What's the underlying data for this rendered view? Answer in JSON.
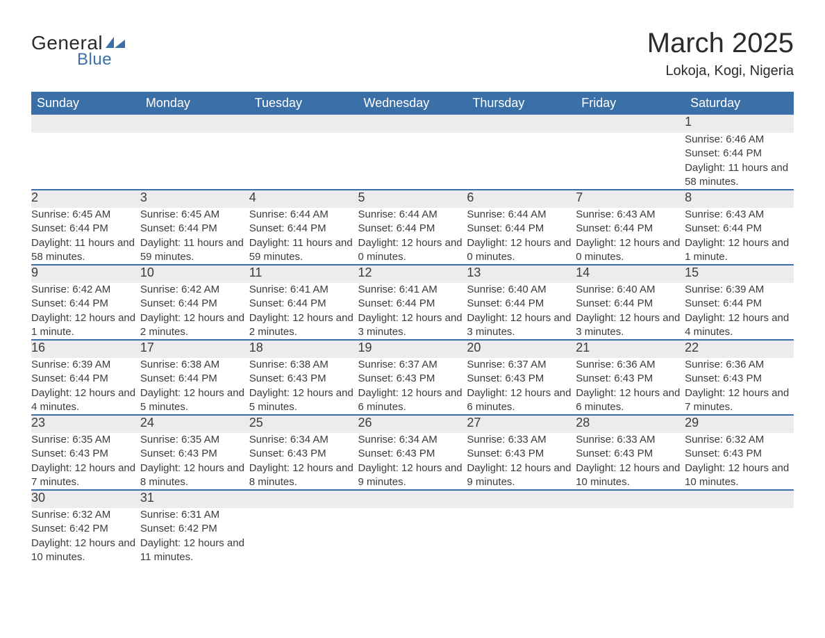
{
  "brand": {
    "word1": "General",
    "word2": "Blue",
    "accent_color": "#3a6fa8"
  },
  "title": "March 2025",
  "subtitle": "Lokoja, Kogi, Nigeria",
  "colors": {
    "header_bg": "#3a6fa8",
    "header_text": "#ffffff",
    "daynum_bg": "#ececec",
    "row_border": "#3a6fa8",
    "body_text": "#3b3b3b",
    "background": "#ffffff"
  },
  "typography": {
    "title_fontsize": 40,
    "subtitle_fontsize": 20,
    "header_fontsize": 18,
    "daynum_fontsize": 18,
    "detail_fontsize": 15
  },
  "calendar": {
    "type": "table",
    "columns": [
      "Sunday",
      "Monday",
      "Tuesday",
      "Wednesday",
      "Thursday",
      "Friday",
      "Saturday"
    ],
    "weeks": [
      [
        null,
        null,
        null,
        null,
        null,
        null,
        {
          "day": 1,
          "sunrise": "6:46 AM",
          "sunset": "6:44 PM",
          "daylight": "11 hours and 58 minutes."
        }
      ],
      [
        {
          "day": 2,
          "sunrise": "6:45 AM",
          "sunset": "6:44 PM",
          "daylight": "11 hours and 58 minutes."
        },
        {
          "day": 3,
          "sunrise": "6:45 AM",
          "sunset": "6:44 PM",
          "daylight": "11 hours and 59 minutes."
        },
        {
          "day": 4,
          "sunrise": "6:44 AM",
          "sunset": "6:44 PM",
          "daylight": "11 hours and 59 minutes."
        },
        {
          "day": 5,
          "sunrise": "6:44 AM",
          "sunset": "6:44 PM",
          "daylight": "12 hours and 0 minutes."
        },
        {
          "day": 6,
          "sunrise": "6:44 AM",
          "sunset": "6:44 PM",
          "daylight": "12 hours and 0 minutes."
        },
        {
          "day": 7,
          "sunrise": "6:43 AM",
          "sunset": "6:44 PM",
          "daylight": "12 hours and 0 minutes."
        },
        {
          "day": 8,
          "sunrise": "6:43 AM",
          "sunset": "6:44 PM",
          "daylight": "12 hours and 1 minute."
        }
      ],
      [
        {
          "day": 9,
          "sunrise": "6:42 AM",
          "sunset": "6:44 PM",
          "daylight": "12 hours and 1 minute."
        },
        {
          "day": 10,
          "sunrise": "6:42 AM",
          "sunset": "6:44 PM",
          "daylight": "12 hours and 2 minutes."
        },
        {
          "day": 11,
          "sunrise": "6:41 AM",
          "sunset": "6:44 PM",
          "daylight": "12 hours and 2 minutes."
        },
        {
          "day": 12,
          "sunrise": "6:41 AM",
          "sunset": "6:44 PM",
          "daylight": "12 hours and 3 minutes."
        },
        {
          "day": 13,
          "sunrise": "6:40 AM",
          "sunset": "6:44 PM",
          "daylight": "12 hours and 3 minutes."
        },
        {
          "day": 14,
          "sunrise": "6:40 AM",
          "sunset": "6:44 PM",
          "daylight": "12 hours and 3 minutes."
        },
        {
          "day": 15,
          "sunrise": "6:39 AM",
          "sunset": "6:44 PM",
          "daylight": "12 hours and 4 minutes."
        }
      ],
      [
        {
          "day": 16,
          "sunrise": "6:39 AM",
          "sunset": "6:44 PM",
          "daylight": "12 hours and 4 minutes."
        },
        {
          "day": 17,
          "sunrise": "6:38 AM",
          "sunset": "6:44 PM",
          "daylight": "12 hours and 5 minutes."
        },
        {
          "day": 18,
          "sunrise": "6:38 AM",
          "sunset": "6:43 PM",
          "daylight": "12 hours and 5 minutes."
        },
        {
          "day": 19,
          "sunrise": "6:37 AM",
          "sunset": "6:43 PM",
          "daylight": "12 hours and 6 minutes."
        },
        {
          "day": 20,
          "sunrise": "6:37 AM",
          "sunset": "6:43 PM",
          "daylight": "12 hours and 6 minutes."
        },
        {
          "day": 21,
          "sunrise": "6:36 AM",
          "sunset": "6:43 PM",
          "daylight": "12 hours and 6 minutes."
        },
        {
          "day": 22,
          "sunrise": "6:36 AM",
          "sunset": "6:43 PM",
          "daylight": "12 hours and 7 minutes."
        }
      ],
      [
        {
          "day": 23,
          "sunrise": "6:35 AM",
          "sunset": "6:43 PM",
          "daylight": "12 hours and 7 minutes."
        },
        {
          "day": 24,
          "sunrise": "6:35 AM",
          "sunset": "6:43 PM",
          "daylight": "12 hours and 8 minutes."
        },
        {
          "day": 25,
          "sunrise": "6:34 AM",
          "sunset": "6:43 PM",
          "daylight": "12 hours and 8 minutes."
        },
        {
          "day": 26,
          "sunrise": "6:34 AM",
          "sunset": "6:43 PM",
          "daylight": "12 hours and 9 minutes."
        },
        {
          "day": 27,
          "sunrise": "6:33 AM",
          "sunset": "6:43 PM",
          "daylight": "12 hours and 9 minutes."
        },
        {
          "day": 28,
          "sunrise": "6:33 AM",
          "sunset": "6:43 PM",
          "daylight": "12 hours and 10 minutes."
        },
        {
          "day": 29,
          "sunrise": "6:32 AM",
          "sunset": "6:43 PM",
          "daylight": "12 hours and 10 minutes."
        }
      ],
      [
        {
          "day": 30,
          "sunrise": "6:32 AM",
          "sunset": "6:42 PM",
          "daylight": "12 hours and 10 minutes."
        },
        {
          "day": 31,
          "sunrise": "6:31 AM",
          "sunset": "6:42 PM",
          "daylight": "12 hours and 11 minutes."
        },
        null,
        null,
        null,
        null,
        null
      ]
    ],
    "labels": {
      "sunrise": "Sunrise:",
      "sunset": "Sunset:",
      "daylight": "Daylight:"
    }
  }
}
